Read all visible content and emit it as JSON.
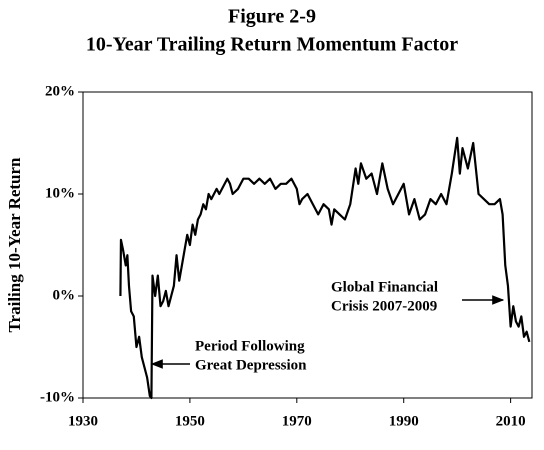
{
  "chart_data": {
    "type": "line",
    "title": "Figure 2-9",
    "subtitle": "10-Year Trailing Return Momentum Factor",
    "y_label": "Trailing 10-Year Return",
    "annotations": [
      [
        "Period Following",
        "Great Depression"
      ],
      [
        "Global Financial",
        "Crisis 2007-2009"
      ]
    ],
    "color": "#000000",
    "xlim": [
      1930,
      2014
    ],
    "xticks": [
      1930,
      1950,
      1970,
      1990,
      2010
    ],
    "ylim": [
      -10,
      20
    ],
    "yticks": [
      {
        "value": -10,
        "label": "-10%"
      },
      {
        "value": 0,
        "label": "0%"
      },
      {
        "value": 10,
        "label": "10%"
      },
      {
        "value": 20,
        "label": "20%"
      }
    ],
    "x": [
      1937,
      1937.1,
      1937.5,
      1938,
      1938.3,
      1938.6,
      1939,
      1939.5,
      1940,
      1940.5,
      1941,
      1941.5,
      1942,
      1942.5,
      1942.8,
      1943,
      1943.5,
      1944,
      1944.5,
      1945,
      1945.5,
      1946,
      1946.5,
      1947,
      1947.5,
      1948,
      1948.5,
      1949,
      1949.5,
      1950,
      1950.5,
      1951,
      1951.5,
      1952,
      1952.5,
      1953,
      1953.5,
      1954,
      1955,
      1955.5,
      1956,
      1957,
      1957.5,
      1958,
      1959,
      1960,
      1961,
      1962,
      1963,
      1964,
      1965,
      1966,
      1967,
      1968,
      1969,
      1970,
      1970.5,
      1971,
      1972,
      1973,
      1974,
      1975,
      1976,
      1976.5,
      1977,
      1978,
      1979,
      1980,
      1981,
      1981.5,
      1982,
      1983,
      1984,
      1985,
      1986,
      1987,
      1988,
      1989,
      1990,
      1991,
      1992,
      1993,
      1994,
      1995,
      1996,
      1997,
      1998,
      1999,
      2000,
      2000.5,
      2001,
      2002,
      2003,
      2004,
      2005,
      2006,
      2007,
      2008,
      2008.5,
      2009,
      2009.5,
      2010,
      2010.5,
      2011,
      2011.5,
      2012,
      2012.5,
      2013,
      2013.5
    ],
    "values": [
      0,
      5.5,
      4.5,
      3,
      4,
      1,
      -1.5,
      -2,
      -5,
      -4,
      -6,
      -7,
      -8,
      -9.8,
      -10,
      2,
      0,
      2,
      -1,
      -0.5,
      0.5,
      -1,
      0,
      1,
      4,
      1.5,
      3,
      4.5,
      6,
      5,
      7,
      6,
      7.5,
      8,
      9,
      8.5,
      10,
      9.5,
      10.5,
      10,
      10.5,
      11.5,
      11,
      10,
      10.5,
      11.5,
      11.5,
      11,
      11.5,
      11,
      11.5,
      10.5,
      11,
      11,
      11.5,
      10.5,
      9,
      9.5,
      10,
      9,
      8,
      9,
      8.5,
      7,
      8.5,
      8,
      7.5,
      9,
      12.5,
      11,
      13,
      11.5,
      12,
      10,
      13,
      10.5,
      9,
      10,
      11,
      8,
      9.5,
      7.5,
      8,
      9.5,
      9,
      10,
      9,
      12,
      15.5,
      12,
      14.5,
      12.5,
      15,
      10,
      9.5,
      9,
      9,
      9.5,
      8,
      3,
      1,
      -3,
      -1,
      -2.5,
      -3,
      -2,
      -4,
      -3.5,
      -4.5
    ]
  }
}
